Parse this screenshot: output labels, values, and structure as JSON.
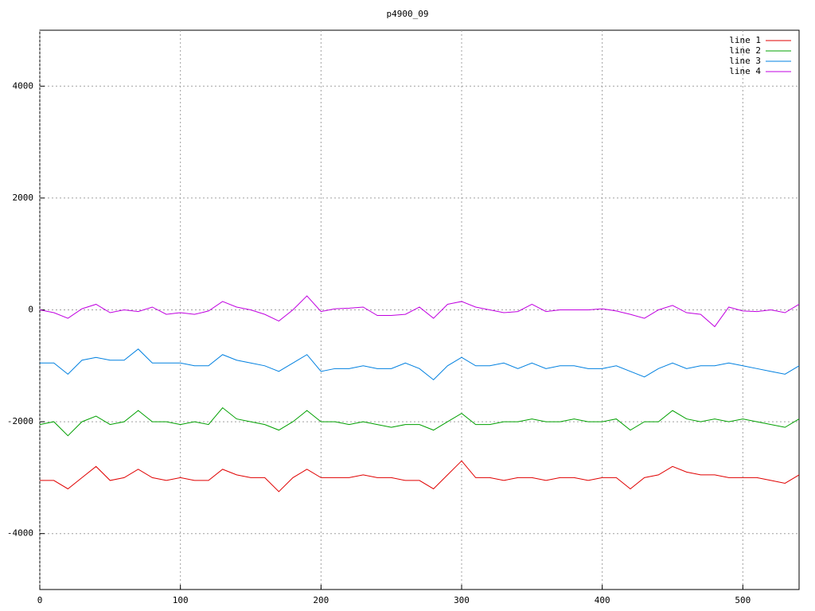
{
  "chart_data": {
    "type": "line",
    "title": "p4900_09",
    "x": [
      0,
      10,
      20,
      30,
      40,
      50,
      60,
      70,
      80,
      90,
      100,
      110,
      120,
      130,
      140,
      150,
      160,
      170,
      180,
      190,
      200,
      210,
      220,
      230,
      240,
      250,
      260,
      270,
      280,
      290,
      300,
      310,
      320,
      330,
      340,
      350,
      360,
      370,
      380,
      390,
      400,
      410,
      420,
      430,
      440,
      450,
      460,
      470,
      480,
      490,
      500,
      510,
      520,
      530,
      540
    ],
    "series": [
      {
        "name": "line 1",
        "color": "#e00000",
        "values": [
          -3050,
          -3050,
          -3200,
          -3000,
          -2800,
          -3050,
          -3000,
          -2850,
          -3000,
          -3050,
          -3000,
          -3050,
          -3050,
          -2850,
          -2950,
          -3000,
          -3000,
          -3250,
          -3000,
          -2850,
          -3000,
          -3000,
          -3000,
          -2950,
          -3000,
          -3000,
          -3050,
          -3050,
          -3200,
          -2950,
          -2700,
          -3000,
          -3000,
          -3050,
          -3000,
          -3000,
          -3050,
          -3000,
          -3000,
          -3050,
          -3000,
          -3000,
          -3200,
          -3000,
          -2950,
          -2800,
          -2900,
          -2950,
          -2950,
          -3000,
          -3000,
          -3000,
          -3050,
          -3100,
          -2950
        ]
      },
      {
        "name": "line 2",
        "color": "#00a000",
        "values": [
          -2050,
          -2000,
          -2250,
          -2000,
          -1900,
          -2050,
          -2000,
          -1800,
          -2000,
          -2000,
          -2050,
          -2000,
          -2050,
          -1750,
          -1950,
          -2000,
          -2050,
          -2150,
          -2000,
          -1800,
          -2000,
          -2000,
          -2050,
          -2000,
          -2050,
          -2100,
          -2050,
          -2050,
          -2150,
          -2000,
          -1850,
          -2050,
          -2050,
          -2000,
          -2000,
          -1950,
          -2000,
          -2000,
          -1950,
          -2000,
          -2000,
          -1950,
          -2150,
          -2000,
          -2000,
          -1800,
          -1950,
          -2000,
          -1950,
          -2000,
          -1950,
          -2000,
          -2050,
          -2100,
          -1950
        ]
      },
      {
        "name": "line 3",
        "color": "#0080e0",
        "values": [
          -950,
          -950,
          -1150,
          -900,
          -850,
          -900,
          -900,
          -700,
          -950,
          -950,
          -950,
          -1000,
          -1000,
          -800,
          -900,
          -950,
          -1000,
          -1100,
          -950,
          -800,
          -1100,
          -1050,
          -1050,
          -1000,
          -1050,
          -1050,
          -950,
          -1050,
          -1250,
          -1000,
          -850,
          -1000,
          -1000,
          -950,
          -1050,
          -950,
          -1050,
          -1000,
          -1000,
          -1050,
          -1050,
          -1000,
          -1100,
          -1200,
          -1050,
          -950,
          -1050,
          -1000,
          -1000,
          -950,
          -1000,
          -1050,
          -1100,
          -1150,
          -1000
        ]
      },
      {
        "name": "line 4",
        "color": "#c000e0",
        "values": [
          0,
          -50,
          -150,
          20,
          100,
          -50,
          0,
          -30,
          50,
          -80,
          -50,
          -80,
          -20,
          150,
          50,
          0,
          -80,
          -200,
          0,
          250,
          -30,
          20,
          30,
          50,
          -100,
          -100,
          -80,
          50,
          -150,
          100,
          150,
          50,
          0,
          -50,
          -30,
          100,
          -30,
          0,
          0,
          0,
          20,
          -20,
          -80,
          -150,
          0,
          80,
          -50,
          -80,
          -300,
          50,
          -20,
          -30,
          0,
          -50,
          100
        ]
      }
    ],
    "xlim": [
      0,
      540
    ],
    "ylim": [
      -5000,
      5000
    ],
    "xticks": [
      0,
      100,
      200,
      300,
      400,
      500
    ],
    "yticks": [
      -4000,
      -2000,
      0,
      2000,
      4000
    ],
    "grid": true,
    "legend": "top-right"
  }
}
